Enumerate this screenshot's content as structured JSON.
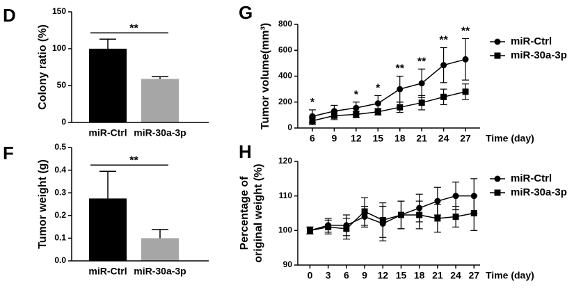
{
  "chart_data": [
    {
      "type": "bar",
      "label": "D",
      "ylabel": "Colony ratio (%)",
      "categories": [
        "miR-Ctrl",
        "miR-30a-3p"
      ],
      "values": [
        100,
        59
      ],
      "errors": [
        13,
        3
      ],
      "colors": [
        "#000000",
        "#a6a6a7"
      ],
      "ylim": [
        0,
        150
      ],
      "yticks": [
        0,
        50,
        100,
        150
      ],
      "significance": "**"
    },
    {
      "type": "bar",
      "label": "F",
      "ylabel": "Tumor weight (g)",
      "categories": [
        "miR-Ctrl",
        "miR-30a-3p"
      ],
      "values": [
        0.275,
        0.1
      ],
      "errors": [
        0.12,
        0.038
      ],
      "colors": [
        "#000000",
        "#a6a6a7"
      ],
      "ylim": [
        0,
        0.5
      ],
      "yticks": [
        {
          "value": 0,
          "label": "0.0"
        },
        0.1,
        0.2,
        0.3,
        0.4,
        0.5
      ],
      "significance": "**"
    },
    {
      "type": "line",
      "label": "G",
      "ylabel": "Tumor volume(mm³)",
      "xlabel": "Time (day)",
      "x": [
        6,
        9,
        12,
        15,
        18,
        21,
        24,
        27
      ],
      "xlim": [
        4,
        29
      ],
      "xticks": [
        6,
        9,
        12,
        15,
        18,
        21,
        24,
        27
      ],
      "ylim": [
        0,
        800
      ],
      "yticks": [
        0,
        200,
        400,
        600,
        800
      ],
      "legend": "right",
      "annotations": [
        "*",
        null,
        "*",
        "*",
        "**",
        "**",
        "**",
        "**"
      ],
      "series": [
        {
          "name": "miR-Ctrl",
          "color": "#000000",
          "marker": "circle",
          "values": [
            90,
            130,
            155,
            190,
            300,
            345,
            485,
            530
          ],
          "errors": [
            50,
            45,
            45,
            60,
            100,
            110,
            135,
            160
          ]
        },
        {
          "name": "miR-30a-3p",
          "color": "#000000",
          "marker": "square",
          "values": [
            55,
            95,
            105,
            125,
            160,
            195,
            240,
            280
          ],
          "errors": [
            30,
            30,
            25,
            25,
            40,
            55,
            60,
            60
          ]
        }
      ]
    },
    {
      "type": "line",
      "label": "H",
      "ylabel": [
        "Percentage of",
        "original weight (%)"
      ],
      "xlabel": "Time (day)",
      "x": [
        0,
        3,
        6,
        9,
        12,
        15,
        18,
        21,
        24,
        27
      ],
      "xlim": [
        -2,
        28
      ],
      "xticks": [
        0,
        3,
        6,
        9,
        12,
        15,
        18,
        21,
        24,
        27
      ],
      "ylim": [
        90,
        120
      ],
      "yticks": [
        90,
        100,
        110,
        120
      ],
      "legend": "right",
      "series": [
        {
          "name": "miR-Ctrl",
          "color": "#000000",
          "marker": "circle",
          "values": [
            100,
            101.5,
            101.5,
            104,
            102,
            104.5,
            106.5,
            108.5,
            110,
            110
          ],
          "errors": [
            1,
            2,
            3,
            3,
            5,
            4,
            4,
            4,
            4,
            5
          ]
        },
        {
          "name": "miR-30a-3p",
          "color": "#000000",
          "marker": "square",
          "values": [
            100,
            101,
            100.5,
            105.5,
            103,
            104.5,
            104.5,
            103.5,
            104,
            105
          ],
          "errors": [
            1,
            2,
            3,
            4,
            5,
            4,
            4,
            4,
            3,
            5
          ]
        }
      ]
    }
  ]
}
